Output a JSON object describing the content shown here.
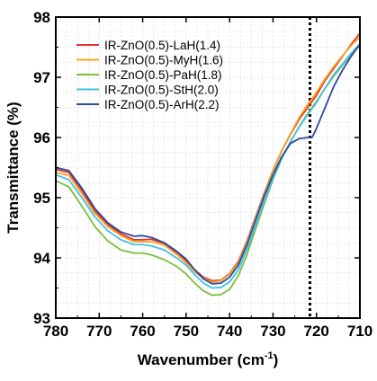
{
  "chart_data": {
    "type": "line",
    "title": "",
    "xlabel_main": "Wavenumber (cm",
    "xlabel_sup": "-1",
    "xlabel_tail": ")",
    "ylabel": "Transmittance (%)",
    "xlim": [
      780,
      710
    ],
    "ylim": [
      93,
      98
    ],
    "x_reversed": true,
    "x_ticks": [
      780,
      770,
      760,
      750,
      740,
      730,
      720,
      710
    ],
    "y_ticks": [
      93,
      94,
      95,
      96,
      97,
      98
    ],
    "grid": true,
    "legend_position": "top-left",
    "reference_line": {
      "x": 721.5,
      "style": "dotted",
      "color": "#000000"
    },
    "series": [
      {
        "name": "IR-ZnO(0.5)-LaH(1.4)",
        "color": "#e8302a",
        "points": [
          [
            780,
            95.47
          ],
          [
            777,
            95.42
          ],
          [
            774,
            95.12
          ],
          [
            771,
            94.78
          ],
          [
            768,
            94.55
          ],
          [
            765,
            94.4
          ],
          [
            762,
            94.3
          ],
          [
            760,
            94.3
          ],
          [
            758,
            94.31
          ],
          [
            755,
            94.24
          ],
          [
            752,
            94.08
          ],
          [
            750,
            93.95
          ],
          [
            748,
            93.8
          ],
          [
            746,
            93.68
          ],
          [
            744,
            93.62
          ],
          [
            742,
            93.63
          ],
          [
            740,
            93.74
          ],
          [
            738,
            93.94
          ],
          [
            736,
            94.28
          ],
          [
            734,
            94.68
          ],
          [
            732,
            95.08
          ],
          [
            730,
            95.45
          ],
          [
            728,
            95.78
          ],
          [
            726,
            96.05
          ],
          [
            724,
            96.3
          ],
          [
            722,
            96.5
          ],
          [
            720,
            96.7
          ],
          [
            718,
            96.95
          ],
          [
            716,
            97.15
          ],
          [
            714,
            97.35
          ],
          [
            712,
            97.55
          ],
          [
            710,
            97.73
          ]
        ]
      },
      {
        "name": "IR-ZnO(0.5)-MyH(1.6)",
        "color": "#f5a623",
        "points": [
          [
            780,
            95.42
          ],
          [
            777,
            95.37
          ],
          [
            774,
            95.07
          ],
          [
            771,
            94.74
          ],
          [
            768,
            94.52
          ],
          [
            765,
            94.37
          ],
          [
            762,
            94.27
          ],
          [
            760,
            94.27
          ],
          [
            758,
            94.27
          ],
          [
            755,
            94.21
          ],
          [
            752,
            94.05
          ],
          [
            750,
            93.92
          ],
          [
            748,
            93.77
          ],
          [
            746,
            93.66
          ],
          [
            744,
            93.6
          ],
          [
            742,
            93.62
          ],
          [
            740,
            93.73
          ],
          [
            738,
            93.92
          ],
          [
            736,
            94.26
          ],
          [
            734,
            94.66
          ],
          [
            732,
            95.06
          ],
          [
            730,
            95.44
          ],
          [
            728,
            95.78
          ],
          [
            726,
            96.06
          ],
          [
            724,
            96.33
          ],
          [
            722,
            96.55
          ],
          [
            720,
            96.75
          ],
          [
            718,
            96.98
          ],
          [
            716,
            97.18
          ],
          [
            714,
            97.36
          ],
          [
            712,
            97.53
          ],
          [
            710,
            97.67
          ]
        ]
      },
      {
        "name": "IR-ZnO(0.5)-PaH(1.8)",
        "color": "#7bbf3a",
        "points": [
          [
            780,
            95.28
          ],
          [
            777,
            95.18
          ],
          [
            774,
            94.86
          ],
          [
            771,
            94.52
          ],
          [
            768,
            94.28
          ],
          [
            765,
            94.13
          ],
          [
            762,
            94.08
          ],
          [
            760,
            94.08
          ],
          [
            758,
            94.05
          ],
          [
            755,
            93.97
          ],
          [
            752,
            93.85
          ],
          [
            750,
            93.73
          ],
          [
            748,
            93.58
          ],
          [
            746,
            93.45
          ],
          [
            744,
            93.38
          ],
          [
            742,
            93.39
          ],
          [
            740,
            93.48
          ],
          [
            738,
            93.7
          ],
          [
            736,
            94.05
          ],
          [
            734,
            94.48
          ],
          [
            732,
            94.9
          ],
          [
            730,
            95.3
          ],
          [
            728,
            95.65
          ],
          [
            726,
            95.92
          ],
          [
            724,
            96.18
          ],
          [
            722,
            96.4
          ],
          [
            720,
            96.6
          ],
          [
            718,
            96.82
          ],
          [
            716,
            97.02
          ],
          [
            714,
            97.2
          ],
          [
            712,
            97.37
          ],
          [
            710,
            97.53
          ]
        ]
      },
      {
        "name": "IR-ZnO(0.5)-StH(2.0)",
        "color": "#45c0e3",
        "points": [
          [
            780,
            95.38
          ],
          [
            777,
            95.3
          ],
          [
            774,
            95.0
          ],
          [
            771,
            94.68
          ],
          [
            768,
            94.45
          ],
          [
            765,
            94.3
          ],
          [
            762,
            94.22
          ],
          [
            760,
            94.22
          ],
          [
            758,
            94.2
          ],
          [
            755,
            94.13
          ],
          [
            752,
            93.99
          ],
          [
            750,
            93.88
          ],
          [
            748,
            93.72
          ],
          [
            746,
            93.58
          ],
          [
            744,
            93.5
          ],
          [
            742,
            93.51
          ],
          [
            740,
            93.6
          ],
          [
            738,
            93.8
          ],
          [
            736,
            94.14
          ],
          [
            734,
            94.54
          ],
          [
            732,
            94.95
          ],
          [
            730,
            95.32
          ],
          [
            728,
            95.65
          ],
          [
            726,
            95.93
          ],
          [
            724,
            96.17
          ],
          [
            722,
            96.38
          ],
          [
            720,
            96.58
          ],
          [
            718,
            96.82
          ],
          [
            716,
            97.05
          ],
          [
            714,
            97.22
          ],
          [
            712,
            97.4
          ],
          [
            710,
            97.55
          ]
        ]
      },
      {
        "name": "IR-ZnO(0.5)-ArH(2.2)",
        "color": "#2b4aa1",
        "points": [
          [
            780,
            95.5
          ],
          [
            777,
            95.45
          ],
          [
            774,
            95.16
          ],
          [
            771,
            94.82
          ],
          [
            768,
            94.58
          ],
          [
            765,
            94.43
          ],
          [
            762,
            94.36
          ],
          [
            760,
            94.37
          ],
          [
            758,
            94.34
          ],
          [
            755,
            94.25
          ],
          [
            752,
            94.1
          ],
          [
            750,
            93.98
          ],
          [
            748,
            93.8
          ],
          [
            746,
            93.65
          ],
          [
            744,
            93.57
          ],
          [
            742,
            93.58
          ],
          [
            740,
            93.68
          ],
          [
            738,
            93.88
          ],
          [
            736,
            94.22
          ],
          [
            734,
            94.63
          ],
          [
            732,
            95.03
          ],
          [
            730,
            95.38
          ],
          [
            728,
            95.68
          ],
          [
            726,
            95.9
          ],
          [
            724,
            95.98
          ],
          [
            722,
            96.0
          ],
          [
            721,
            96.0
          ],
          [
            720,
            96.15
          ],
          [
            718,
            96.5
          ],
          [
            716,
            96.85
          ],
          [
            714,
            97.12
          ],
          [
            712,
            97.35
          ],
          [
            710,
            97.55
          ]
        ]
      }
    ]
  }
}
